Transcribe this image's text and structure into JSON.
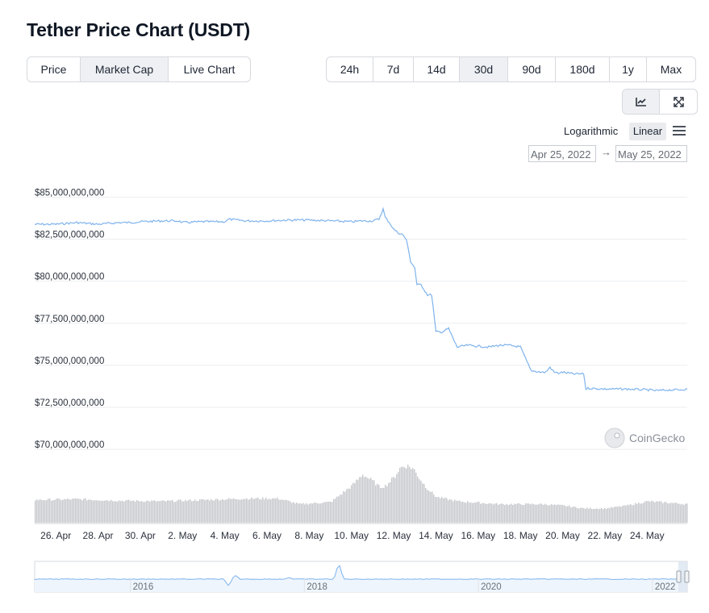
{
  "page": {
    "title": "Tether Price Chart (USDT)",
    "metric_tabs": [
      {
        "label": "Price",
        "active": false
      },
      {
        "label": "Market Cap",
        "active": true
      },
      {
        "label": "Live Chart",
        "active": false
      }
    ],
    "range_tabs": [
      {
        "label": "24h",
        "active": false
      },
      {
        "label": "7d",
        "active": false
      },
      {
        "label": "14d",
        "active": false
      },
      {
        "label": "30d",
        "active": true
      },
      {
        "label": "90d",
        "active": false
      },
      {
        "label": "180d",
        "active": false
      },
      {
        "label": "1y",
        "active": false
      },
      {
        "label": "Max",
        "active": false
      }
    ],
    "tools": [
      {
        "icon": "line-chart-icon",
        "active": true
      },
      {
        "icon": "fullscreen-icon",
        "active": false
      }
    ],
    "scale": {
      "logarithmic": "Logarithmic",
      "linear": "Linear",
      "selected": "Linear"
    },
    "date_range": {
      "from": "Apr 25, 2022",
      "arrow": "→",
      "to": "May 25, 2022"
    },
    "watermark": "CoinGecko"
  },
  "colors": {
    "line": "#7fb3ec",
    "volume": "#c7c9cd",
    "navigator_fill": "#eef5fc",
    "grid": "#eceef1",
    "active_tab": "#eef0f3"
  },
  "chart_data": {
    "type": "line",
    "title": "",
    "xlabel": "",
    "ylabel": "",
    "ylim": [
      69000000000,
      85500000000
    ],
    "y_ticks": [
      85000000000,
      82500000000,
      80000000000,
      77500000000,
      75000000000,
      72500000000,
      70000000000
    ],
    "y_tick_labels": [
      "$85,000,000,000",
      "$82,500,000,000",
      "$80,000,000,000",
      "$77,500,000,000",
      "$75,000,000,000",
      "$72,500,000,000",
      "$70,000,000,000"
    ],
    "x_range": [
      25.0,
      55.9
    ],
    "x_ticks": [
      26,
      28,
      30,
      32,
      34,
      36,
      38,
      40,
      42,
      44,
      46,
      48,
      50,
      52,
      54
    ],
    "x_tick_labels": [
      "26. Apr",
      "28. Apr",
      "30. Apr",
      "2. May",
      "4. May",
      "6. May",
      "8. May",
      "10. May",
      "12. May",
      "14. May",
      "16. May",
      "18. May",
      "20. May",
      "22. May",
      "24. May"
    ],
    "series": [
      {
        "values_unit": "USD market cap",
        "x": [
          25.0,
          26.0,
          27.0,
          28.0,
          29.0,
          29.5,
          30.0,
          31.0,
          31.8,
          32.0,
          33.0,
          34.0,
          34.2,
          35.0,
          36.0,
          37.0,
          38.0,
          39.0,
          40.0,
          40.5,
          41.0,
          41.3,
          41.5,
          41.6,
          41.8,
          42.0,
          42.2,
          42.4,
          42.6,
          42.8,
          43.0,
          43.1,
          43.3,
          43.6,
          43.8,
          44.0,
          44.3,
          44.6,
          45.0,
          45.5,
          46.0,
          46.5,
          47.0,
          47.5,
          48.0,
          48.5,
          49.0,
          49.2,
          49.4,
          49.6,
          49.8,
          50.0,
          50.5,
          51.0,
          51.1,
          51.2,
          52.0,
          53.0,
          54.0,
          54.5,
          55.0,
          55.5,
          55.9
        ],
        "values": [
          83100000000,
          83100000000,
          83200000000,
          83100000000,
          83200000000,
          83200000000,
          83250000000,
          83300000000,
          83300000000,
          83200000000,
          83250000000,
          83250000000,
          83400000000,
          83300000000,
          83300000000,
          83350000000,
          83350000000,
          83300000000,
          83250000000,
          83300000000,
          83300000000,
          83400000000,
          84000000000,
          83500000000,
          83200000000,
          82800000000,
          82600000000,
          82500000000,
          82200000000,
          80900000000,
          80500000000,
          79500000000,
          79500000000,
          78900000000,
          78900000000,
          76700000000,
          76700000000,
          76900000000,
          75800000000,
          75900000000,
          75850000000,
          75800000000,
          75900000000,
          75900000000,
          75800000000,
          74400000000,
          74300000000,
          74300000000,
          74600000000,
          74300000000,
          74250000000,
          74300000000,
          74200000000,
          74200000000,
          73300000000,
          73350000000,
          73300000000,
          73300000000,
          73250000000,
          73200000000,
          73250000000,
          73250000000,
          73300000000
        ]
      }
    ],
    "volume": {
      "x": [
        25,
        27,
        29,
        31,
        33,
        35,
        36.5,
        37.5,
        39,
        40,
        40.5,
        41,
        41.3,
        41.6,
        42,
        42.3,
        42.6,
        42.9,
        43.2,
        43.5,
        44,
        45,
        47,
        49,
        50,
        51,
        52,
        53,
        54,
        55,
        55.9
      ],
      "relative_values": [
        0.32,
        0.33,
        0.31,
        0.3,
        0.32,
        0.34,
        0.34,
        0.26,
        0.29,
        0.52,
        0.68,
        0.58,
        0.5,
        0.52,
        0.64,
        0.78,
        0.8,
        0.76,
        0.62,
        0.5,
        0.36,
        0.3,
        0.26,
        0.26,
        0.24,
        0.2,
        0.2,
        0.24,
        0.3,
        0.28,
        0.26
      ]
    },
    "navigator": {
      "x_ticks": [
        2016,
        2018,
        2020,
        2022
      ],
      "x_tick_labels": [
        "2016",
        "2018",
        "2020",
        "2022"
      ]
    }
  }
}
